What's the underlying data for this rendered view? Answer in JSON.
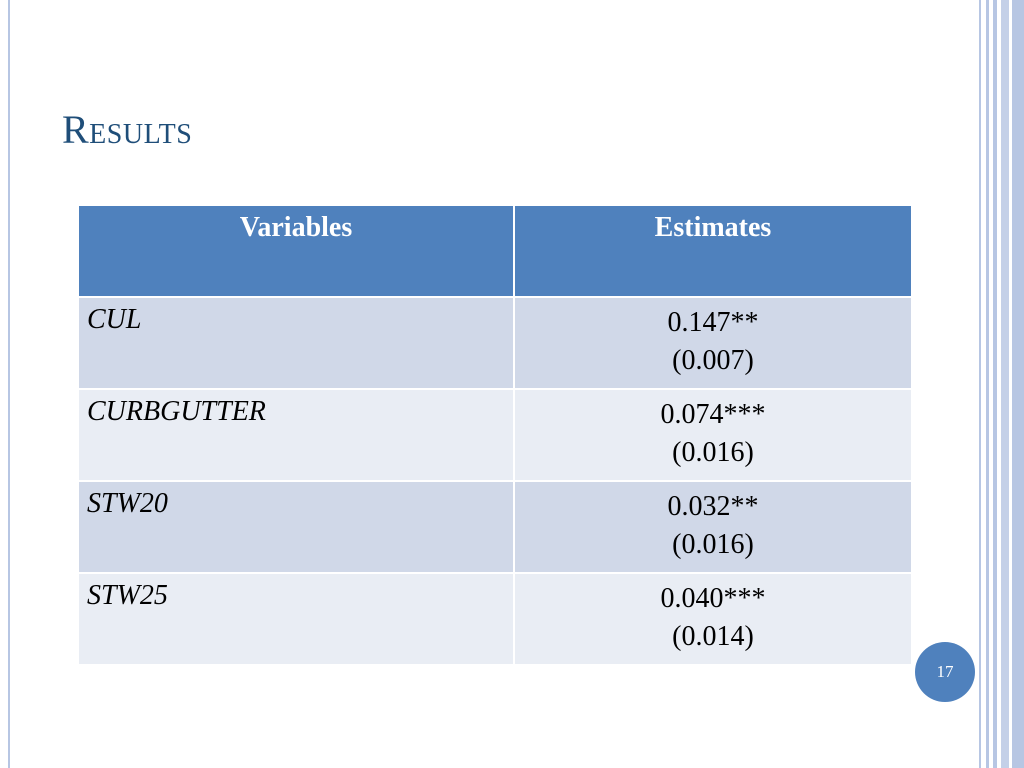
{
  "slide": {
    "title": "Results",
    "page_number": "17"
  },
  "table": {
    "headers": [
      "Variables",
      "Estimates"
    ],
    "rows": [
      {
        "variable": "CUL",
        "estimate": "0.147**",
        "se": "(0.007)"
      },
      {
        "variable": "CURBGUTTER",
        "estimate": "0.074***",
        "se": "(0.016)"
      },
      {
        "variable": "STW20",
        "estimate": "0.032**",
        "se": "(0.016)"
      },
      {
        "variable": "STW25",
        "estimate": "0.040***",
        "se": "(0.014)"
      }
    ]
  },
  "colors": {
    "title": "#1f4e79",
    "header_fill": "#4f81bd",
    "row_odd": "#d0d8e8",
    "row_even": "#e9edf4",
    "badge": "#4f81bd"
  }
}
